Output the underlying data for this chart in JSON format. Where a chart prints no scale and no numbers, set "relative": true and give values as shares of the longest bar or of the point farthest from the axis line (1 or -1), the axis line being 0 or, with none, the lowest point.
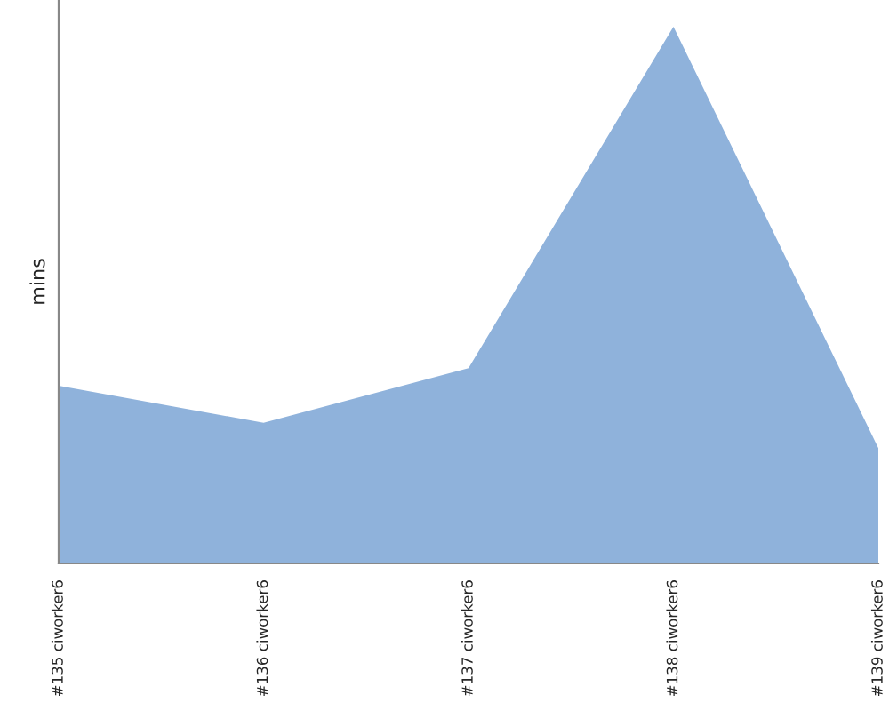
{
  "chart_data": {
    "type": "area",
    "ylabel": "mins",
    "relative": true,
    "categories": [
      "#135 ciworker6",
      "#136 ciworker6",
      "#137 ciworker6",
      "#138 ciworker6",
      "#139 ciworker6"
    ],
    "series": [
      {
        "color": "#8fb2db",
        "values": [
          0.331,
          0.262,
          0.364,
          1,
          0.215
        ]
      }
    ],
    "grid": false,
    "legend": false
  }
}
